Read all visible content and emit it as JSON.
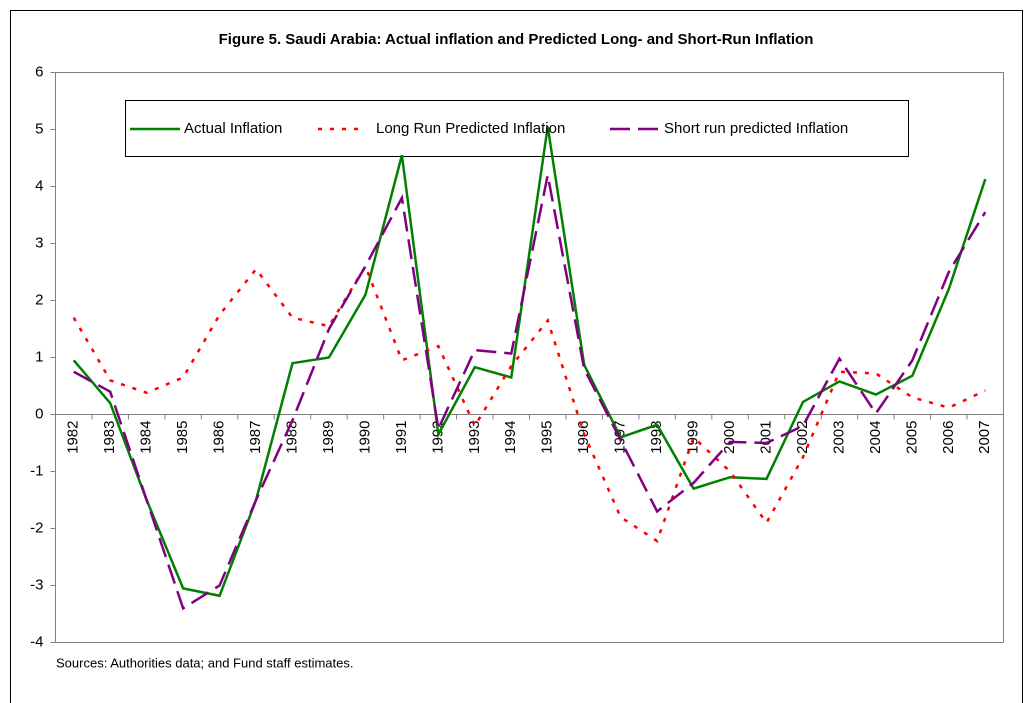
{
  "chart_data": {
    "type": "line",
    "title": "Figure 5. Saudi Arabia: Actual inflation and Predicted Long- and Short-Run Inflation",
    "note": "Sources: Authorities data; and Fund staff estimates.",
    "categories": [
      "1982",
      "1983",
      "1984",
      "1985",
      "1986",
      "1987",
      "1988",
      "1989",
      "1990",
      "1991",
      "1992",
      "1993",
      "1994",
      "1995",
      "1996",
      "1997",
      "1998",
      "1999",
      "2000",
      "2001",
      "2002",
      "2003",
      "2004",
      "2005",
      "2006",
      "2007"
    ],
    "series": [
      {
        "name": "Actual Inflation",
        "color": "#008000",
        "dash": "solid",
        "values": [
          0.95,
          0.2,
          -1.5,
          -3.05,
          -3.18,
          -1.5,
          0.9,
          1.0,
          2.1,
          4.55,
          -0.35,
          0.83,
          0.65,
          5.05,
          0.87,
          -0.4,
          -0.18,
          -1.3,
          -1.1,
          -1.13,
          0.22,
          0.58,
          0.35,
          0.68,
          2.2,
          4.13
        ]
      },
      {
        "name": "Long Run Predicted Inflation",
        "color": "#ff0000",
        "dash": "dotted",
        "values": [
          1.7,
          0.6,
          0.38,
          0.65,
          1.75,
          2.55,
          1.7,
          1.55,
          2.6,
          0.95,
          1.2,
          -0.2,
          0.85,
          1.65,
          -0.35,
          -1.8,
          -2.22,
          -0.4,
          -1.0,
          -1.9,
          -0.75,
          0.75,
          0.72,
          0.3,
          0.12,
          0.42
        ]
      },
      {
        "name": "Short run predicted Inflation",
        "color": "#800080",
        "dash": "dashed",
        "values": [
          0.75,
          0.4,
          -1.5,
          -3.4,
          -3.0,
          -1.5,
          -0.1,
          1.5,
          2.6,
          3.8,
          -0.25,
          1.13,
          1.07,
          4.2,
          0.8,
          -0.45,
          -1.7,
          -1.2,
          -0.48,
          -0.5,
          -0.2,
          0.98,
          0.02,
          0.95,
          2.5,
          3.55
        ]
      }
    ],
    "ylim": [
      -4,
      6
    ],
    "yticks": [
      -4,
      -3,
      -2,
      -1,
      0,
      1,
      2,
      3,
      4,
      5,
      6
    ],
    "grid": false,
    "legend": "top"
  }
}
